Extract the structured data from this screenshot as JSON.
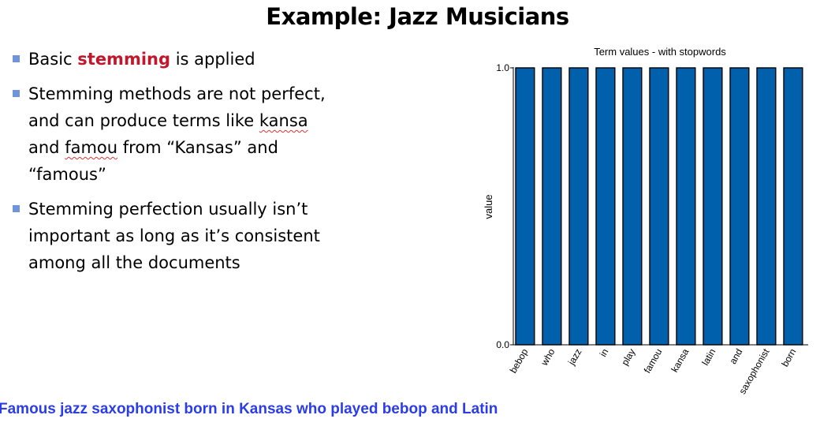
{
  "slide": {
    "title": "Example: Jazz Musicians",
    "bullets": [
      {
        "pre": "Basic ",
        "highlight": "stemming",
        "post": " is applied"
      },
      {
        "lines": [
          "Stemming methods are not perfect,",
          "and can produce terms like ",
          "and ",
          "“famous”"
        ],
        "word1": "kansa",
        "word2": "famou",
        "tail2": " from “Kansas” and"
      },
      {
        "lines": [
          "Stemming perfection usually isn’t",
          "important as long as it’s consistent",
          "among all the documents"
        ]
      }
    ],
    "caption": "Famous jazz saxophonist born in Kansas who played bebop and Latin"
  },
  "chart_data": {
    "type": "bar",
    "title": "Term values - with stopwords",
    "xlabel": "",
    "ylabel": "value",
    "categories": [
      "bebop",
      "who",
      "jazz",
      "in",
      "play",
      "famou",
      "kansa",
      "latin",
      "and",
      "saxophonist",
      "born"
    ],
    "values": [
      1,
      1,
      1,
      1,
      1,
      1,
      1,
      1,
      1,
      1,
      1
    ],
    "ylim": [
      0,
      1
    ],
    "yticks": [
      "0.0",
      "1.0"
    ],
    "bar_color": "#0060ac",
    "grid": false
  }
}
